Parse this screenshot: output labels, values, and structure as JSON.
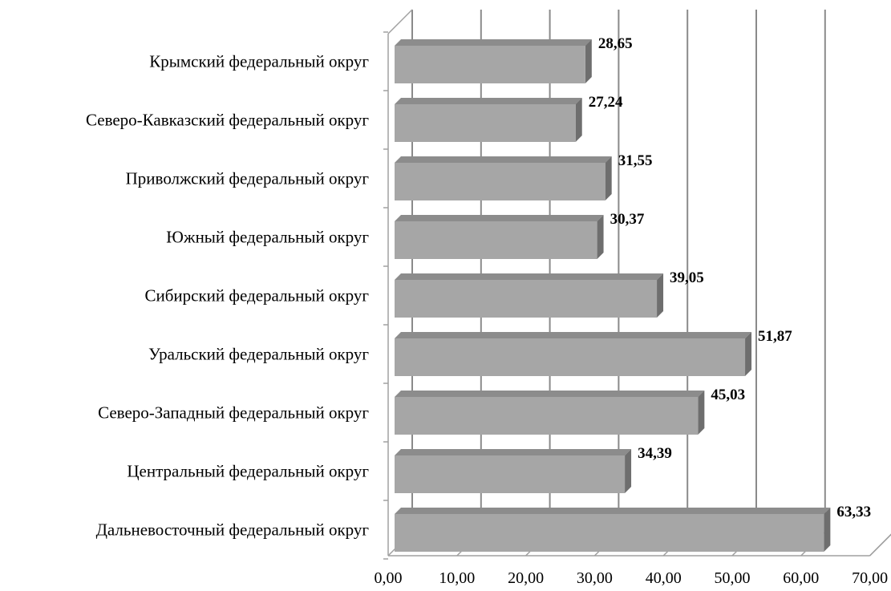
{
  "chart_data": {
    "type": "bar",
    "orientation": "horizontal",
    "style": "3d",
    "categories": [
      "Дальневосточный федеральный округ",
      "Центральный федеральный округ",
      "Северо-Западный федеральный округ",
      "Уральский федеральный округ",
      "Сибирский федеральный округ",
      "Южный федеральный округ",
      "Приволжский федеральный округ",
      "Северо-Кавказский федеральный округ",
      "Крымский федеральный округ"
    ],
    "values": [
      63.33,
      34.39,
      45.03,
      51.87,
      39.05,
      30.37,
      31.55,
      27.24,
      28.65
    ],
    "data_labels": [
      "63,33",
      "34,39",
      "45,03",
      "51,87",
      "39,05",
      "30,37",
      "31,55",
      "27,24",
      "28,65"
    ],
    "x_ticks": [
      "0,00",
      "10,00",
      "20,00",
      "30,00",
      "40,00",
      "50,00",
      "60,00",
      "70,00"
    ],
    "xlim": [
      0,
      70
    ],
    "title": "",
    "xlabel": "",
    "ylabel": "",
    "grid": true,
    "legend": "none",
    "colors": {
      "bar_front": "#a6a6a6",
      "bar_top": "#8c8c8c",
      "bar_side": "#6e6e6e",
      "grid": "#8a8a8a",
      "axis": "#a0a0a0"
    }
  }
}
